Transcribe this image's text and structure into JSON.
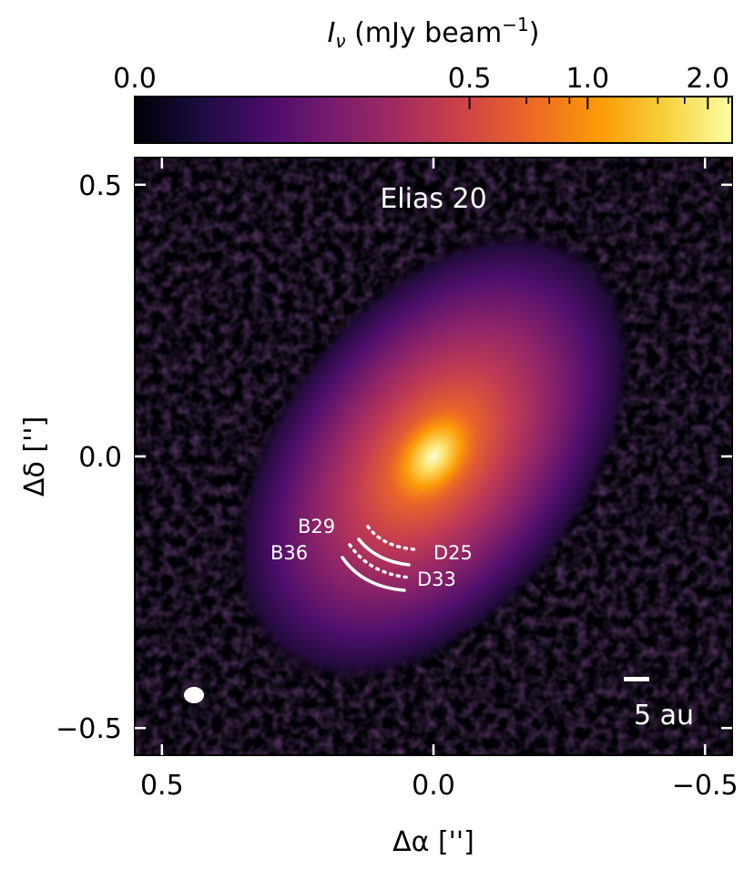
{
  "chart_data": {
    "type": "heatmap",
    "title": "Elias 20",
    "xlabel": "Δα ['']",
    "ylabel": "Δδ ['']",
    "xlim": [
      0.55,
      -0.55
    ],
    "ylim": [
      -0.55,
      0.55
    ],
    "x_ticks": [
      0.5,
      0.0,
      -0.5
    ],
    "y_ticks": [
      0.5,
      0.0,
      -0.5
    ],
    "x_tick_labels": [
      "0.5",
      "0.0",
      "−0.5"
    ],
    "y_tick_labels": [
      "0.5",
      "0.0",
      "−0.5"
    ],
    "colormap": "inferno",
    "colorbar": {
      "label_main": "I",
      "label_sub": "ν",
      "label_rest": " (mJy beam",
      "label_sup": "−1",
      "label_end": ")",
      "ticks": [
        0.0,
        0.5,
        1.0,
        2.0
      ],
      "tick_labels": [
        "0.0",
        "0.5",
        "1.0",
        "2.0"
      ],
      "minor_ticks": [
        0.7,
        0.8,
        0.9,
        1.5,
        1.75,
        2.25
      ],
      "range": [
        0.0,
        2.3
      ],
      "stretch": "asinh"
    },
    "disk": {
      "center": [
        0.0,
        0.0
      ],
      "position_angle_deg": 153,
      "peak_mJy_per_beam": 2.3
    },
    "annotations": {
      "rings": [
        {
          "label": "B29",
          "style": "solid"
        },
        {
          "label": "B36",
          "style": "solid"
        },
        {
          "label": "D25",
          "style": "dotted"
        },
        {
          "label": "D33",
          "style": "dotted"
        }
      ],
      "scale_bar_label": "5 au",
      "beam": "ellipse"
    }
  },
  "colors": {
    "background": "#000004",
    "text_on_image": "#ffffff",
    "colormap_stops": [
      "#000004",
      "#1b0c41",
      "#4a0c6b",
      "#781c6d",
      "#a52c60",
      "#cf4446",
      "#ed6925",
      "#fb9b06",
      "#f7d13d",
      "#fcffa4"
    ]
  }
}
